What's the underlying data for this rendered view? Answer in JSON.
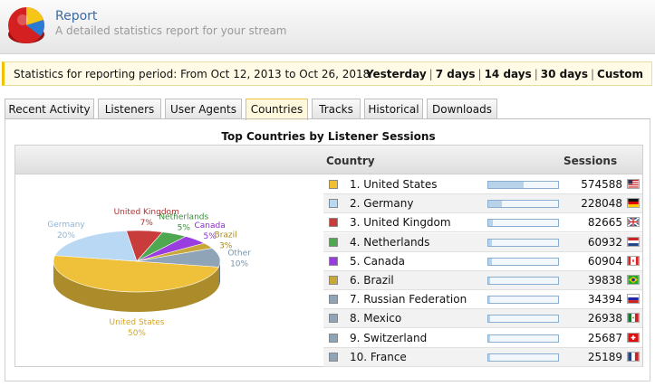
{
  "header": {
    "title": "Report",
    "subtitle": "A detailed statistics report for your stream"
  },
  "period": {
    "text": "Statistics for reporting period: From Oct 12, 2013 to Oct 26, 2018",
    "links": [
      "Yesterday",
      "7 days",
      "14 days",
      "30 days",
      "Custom"
    ]
  },
  "tabs": [
    "Recent Activity",
    "Listeners",
    "User Agents",
    "Countries",
    "Tracks",
    "Historical",
    "Downloads"
  ],
  "active_tab": "Countries",
  "panel": {
    "title": "Top Countries by Listener Sessions",
    "col_country": "Country",
    "col_sessions": "Sessions"
  },
  "rows": [
    {
      "name": "1. United States",
      "sessions": "574588",
      "fraction": 0.5,
      "color": "#f0c030",
      "flag": "us"
    },
    {
      "name": "2. Germany",
      "sessions": "228048",
      "fraction": 0.2,
      "color": "#b8d8f4",
      "flag": "de"
    },
    {
      "name": "3. United Kingdom",
      "sessions": "82665",
      "fraction": 0.07,
      "color": "#c83c3c",
      "flag": "uk"
    },
    {
      "name": "4. Netherlands",
      "sessions": "60932",
      "fraction": 0.05,
      "color": "#4fa84f",
      "flag": "nl"
    },
    {
      "name": "5. Canada",
      "sessions": "60904",
      "fraction": 0.05,
      "color": "#9a3de0",
      "flag": "ca"
    },
    {
      "name": "6. Brazil",
      "sessions": "39838",
      "fraction": 0.03,
      "color": "#c8a838",
      "flag": "br"
    },
    {
      "name": "7. Russian Federation",
      "sessions": "34394",
      "fraction": 0.03,
      "color": "#90a4b8",
      "flag": "ru"
    },
    {
      "name": "8. Mexico",
      "sessions": "26938",
      "fraction": 0.02,
      "color": "#90a4b8",
      "flag": "mx"
    },
    {
      "name": "9. Switzerland",
      "sessions": "25687",
      "fraction": 0.02,
      "color": "#90a4b8",
      "flag": "ch"
    },
    {
      "name": "10. France",
      "sessions": "25189",
      "fraction": 0.02,
      "color": "#90a4b8",
      "flag": "fr"
    }
  ],
  "chart_data": {
    "type": "pie",
    "slices": [
      {
        "label": "United States",
        "value": 50,
        "pct_label": "50%",
        "color": "#efc13a",
        "label_color": "#d6a520"
      },
      {
        "label": "Germany",
        "value": 20,
        "pct_label": "20%",
        "color": "#b8d8f4",
        "label_color": "#8fb4d8"
      },
      {
        "label": "United Kingdom",
        "value": 7,
        "pct_label": "7%",
        "color": "#c83c3c",
        "label_color": "#b03030"
      },
      {
        "label": "Netherlands",
        "value": 5,
        "pct_label": "5%",
        "color": "#4fa84f",
        "label_color": "#3a8a3a"
      },
      {
        "label": "Canada",
        "value": 5,
        "pct_label": "5%",
        "color": "#9a3de0",
        "label_color": "#8a2dd0"
      },
      {
        "label": "Brazil",
        "value": 3,
        "pct_label": "3%",
        "color": "#c8a838",
        "label_color": "#a88a20"
      },
      {
        "label": "Other",
        "value": 10,
        "pct_label": "10%",
        "color": "#90a4b8",
        "label_color": "#7a92aa"
      }
    ]
  }
}
